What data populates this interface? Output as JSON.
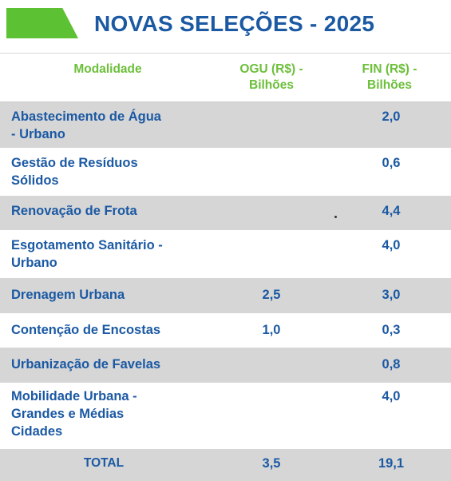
{
  "header": {
    "title": "NOVAS SELEÇÕES - 2025",
    "accent_color": "#5cc133",
    "title_color": "#1b59a3"
  },
  "table": {
    "columns": {
      "modalidade": "Modalidade",
      "ogu_line1": "OGU (R$) -",
      "ogu_line2": "Bilhões",
      "fin_line1": "FIN (R$) -",
      "fin_line2": "Bilhões"
    },
    "rows": [
      {
        "line1": "Abastecimento de Água",
        "line2": "- Urbano",
        "line3": "",
        "ogu": "",
        "fin": "2,0"
      },
      {
        "line1": "Gestão de Resíduos",
        "line2": "Sólidos",
        "line3": "",
        "ogu": "",
        "fin": "0,6"
      },
      {
        "line1": "Renovação de Frota",
        "line2": "",
        "line3": "",
        "ogu": "",
        "fin": "4,4"
      },
      {
        "line1": "Esgotamento Sanitário -",
        "line2": "Urbano",
        "line3": "",
        "ogu": "",
        "fin": "4,0"
      },
      {
        "line1": "Drenagem Urbana",
        "line2": "",
        "line3": "",
        "ogu": "2,5",
        "fin": "3,0"
      },
      {
        "line1": "Contenção de Encostas",
        "line2": "",
        "line3": "",
        "ogu": "1,0",
        "fin": "0,3"
      },
      {
        "line1": "Urbanização de Favelas",
        "line2": "",
        "line3": "",
        "ogu": "",
        "fin": "0,8"
      },
      {
        "line1": "Mobilidade Urbana -",
        "line2": "Grandes e Médias",
        "line3": "Cidades",
        "ogu": "",
        "fin": "4,0"
      }
    ],
    "total": {
      "label": "TOTAL",
      "ogu": "3,5",
      "fin": "19,1"
    },
    "row_colors": {
      "shaded": "#d6d6d6",
      "plain": "#ffffff",
      "header_text": "#6cbf3a",
      "cell_text": "#1b59a3"
    }
  }
}
